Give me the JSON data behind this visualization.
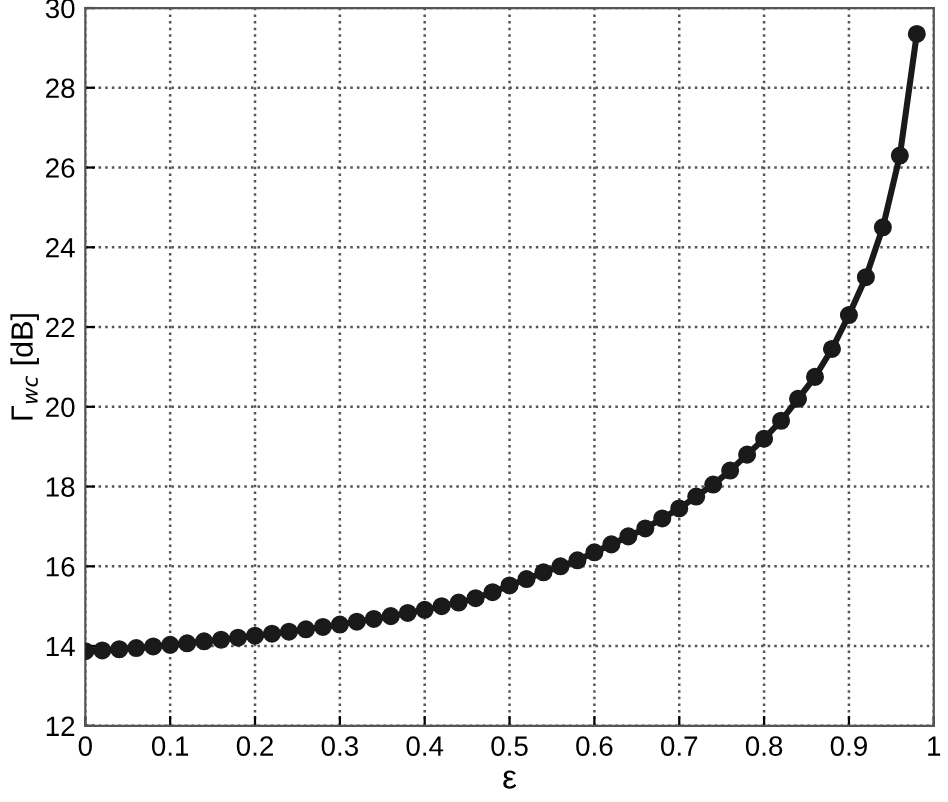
{
  "chart_data": {
    "type": "line",
    "xlabel": "ε",
    "ylabel": "Γ$_{wc}$ [dB]",
    "x": [
      0,
      0.02,
      0.04,
      0.06,
      0.08,
      0.1,
      0.12,
      0.14,
      0.16,
      0.18,
      0.2,
      0.22,
      0.24,
      0.26,
      0.28,
      0.3,
      0.32,
      0.34,
      0.36,
      0.38,
      0.4,
      0.42,
      0.44,
      0.46,
      0.48,
      0.5,
      0.52,
      0.54,
      0.56,
      0.58,
      0.6,
      0.62,
      0.64,
      0.66,
      0.68,
      0.7,
      0.72,
      0.74,
      0.76,
      0.78,
      0.8,
      0.82,
      0.84,
      0.86,
      0.88,
      0.9,
      0.92,
      0.94,
      0.96,
      0.98
    ],
    "series": [
      {
        "color": "#1a1a1a",
        "values": [
          13.87,
          13.89,
          13.92,
          13.95,
          13.99,
          14.03,
          14.07,
          14.12,
          14.16,
          14.21,
          14.26,
          14.31,
          14.36,
          14.42,
          14.48,
          14.54,
          14.61,
          14.68,
          14.75,
          14.83,
          14.91,
          15.0,
          15.09,
          15.2,
          15.35,
          15.52,
          15.68,
          15.85,
          16.0,
          16.15,
          16.35,
          16.55,
          16.75,
          16.95,
          17.2,
          17.45,
          17.75,
          18.05,
          18.4,
          18.8,
          19.2,
          19.65,
          20.2,
          20.75,
          21.45,
          22.3,
          23.25,
          24.5,
          26.3,
          29.35
        ]
      }
    ],
    "xlim": [
      0,
      1
    ],
    "xticks": [
      0,
      0.1,
      0.2,
      0.3,
      0.4,
      0.5,
      0.6,
      0.7,
      0.8,
      0.9,
      1
    ],
    "ylim": [
      12,
      30
    ],
    "yticks": [
      12,
      14,
      16,
      18,
      20,
      22,
      24,
      26,
      28,
      30
    ],
    "grid": true,
    "marker": "circle",
    "line_style": "solid"
  }
}
